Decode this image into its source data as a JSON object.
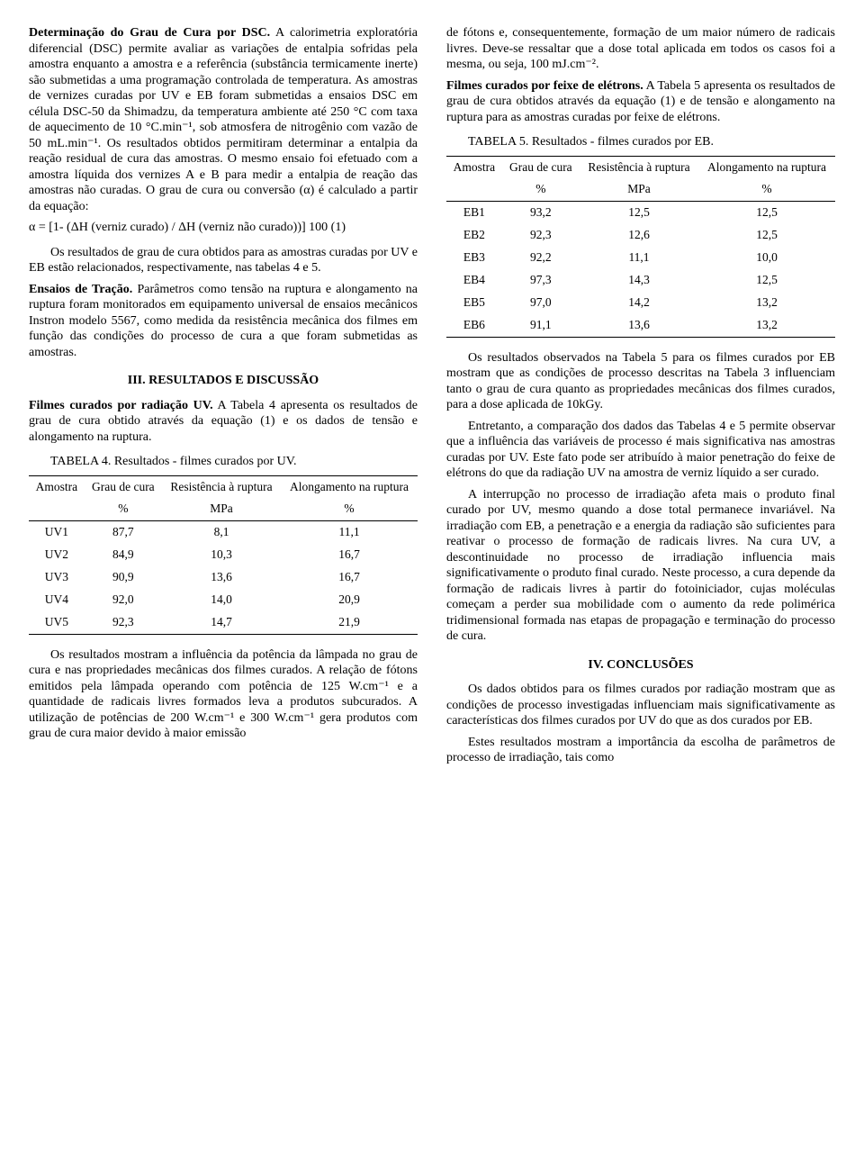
{
  "col1": {
    "p1_bold": "Determinação do Grau de Cura por DSC.",
    "p1_rest": " A calorimetria exploratória diferencial (DSC) permite avaliar as variações de entalpia sofridas pela amostra enquanto a amostra e a referência (substância termicamente inerte) são submetidas a uma programação controlada de temperatura. As amostras de vernizes curadas por UV e EB foram submetidas a ensaios DSC em célula DSC-50 da Shimadzu, da temperatura ambiente até 250 °C com taxa de aquecimento de 10 °C.min⁻¹, sob atmosfera de nitrogênio com vazão de 50 mL.min⁻¹. Os resultados obtidos permitiram determinar a entalpia da reação residual de cura das amostras. O mesmo ensaio foi efetuado com a amostra líquida dos vernizes A e B para medir a entalpia de reação das amostras não curadas. O grau de cura ou conversão (α) é calculado a partir da equação:",
    "eq": "α = [1- (ΔH (verniz curado) / ΔH (verniz não curado))] 100      (1)",
    "p2": "Os resultados de grau de cura obtidos para as amostras curadas por UV e EB estão relacionados, respectivamente, nas tabelas 4 e 5.",
    "p3_bold": "Ensaios de Tração.",
    "p3_rest": " Parâmetros como tensão na ruptura e alongamento na ruptura foram monitorados em equipamento universal de ensaios mecânicos Instron modelo 5567, como medida da resistência mecânica dos filmes em função das condições do processo de cura a que foram submetidas as amostras.",
    "sec3": "III. RESULTADOS E DISCUSSÃO",
    "p4_bold": "Filmes curados por radiação UV.",
    "p4_rest": " A Tabela 4 apresenta os resultados de grau de cura obtido através da equação (1) e os dados de tensão e alongamento na ruptura.",
    "t4cap": "TABELA 4. Resultados - filmes curados por UV.",
    "table4": {
      "head1": [
        "Amostra",
        "Grau de cura",
        "Resistência à ruptura",
        "Alongamento na ruptura"
      ],
      "head2": [
        "",
        "%",
        "MPa",
        "%"
      ],
      "rows": [
        [
          "UV1",
          "87,7",
          "8,1",
          "11,1"
        ],
        [
          "UV2",
          "84,9",
          "10,3",
          "16,7"
        ],
        [
          "UV3",
          "90,9",
          "13,6",
          "16,7"
        ],
        [
          "UV4",
          "92,0",
          "14,0",
          "20,9"
        ],
        [
          "UV5",
          "92,3",
          "14,7",
          "21,9"
        ]
      ]
    },
    "p5": "Os resultados mostram a influência da potência da lâmpada no grau de cura e nas propriedades mecânicas dos filmes curados. A relação de fótons emitidos pela lâmpada operando com potência de 125 W.cm⁻¹ e a quantidade de radicais livres formados leva a produtos subcurados. A utilização de potências de 200 W.cm⁻¹ e 300 W.cm⁻¹ gera produtos com grau de cura maior devido à maior emissão"
  },
  "col2": {
    "p1": "de fótons e, consequentemente, formação de um maior número de radicais livres. Deve-se ressaltar que a dose total aplicada em todos os casos foi a mesma, ou seja, 100 mJ.cm⁻².",
    "p2_bold": "Filmes curados por feixe de elétrons.",
    "p2_rest": " A Tabela 5 apresenta os resultados de grau de cura obtidos através da equação (1) e de tensão e alongamento na ruptura para as amostras curadas por feixe de elétrons.",
    "t5cap": "TABELA 5. Resultados - filmes curados por EB.",
    "table5": {
      "head1": [
        "Amostra",
        "Grau de cura",
        "Resistência à ruptura",
        "Alongamento na ruptura"
      ],
      "head2": [
        "",
        "%",
        "MPa",
        "%"
      ],
      "rows": [
        [
          "EB1",
          "93,2",
          "12,5",
          "12,5"
        ],
        [
          "EB2",
          "92,3",
          "12,6",
          "12,5"
        ],
        [
          "EB3",
          "92,2",
          "11,1",
          "10,0"
        ],
        [
          "EB4",
          "97,3",
          "14,3",
          "12,5"
        ],
        [
          "EB5",
          "97,0",
          "14,2",
          "13,2"
        ],
        [
          "EB6",
          "91,1",
          "13,6",
          "13,2"
        ]
      ]
    },
    "p3": "Os resultados observados na Tabela 5 para os filmes curados por EB mostram que as condições de processo descritas na Tabela 3 influenciam tanto o grau de cura quanto as propriedades mecânicas dos filmes curados, para a dose aplicada de 10kGy.",
    "p4": "Entretanto, a comparação dos dados das Tabelas 4 e 5 permite observar que a influência das variáveis de processo é mais significativa nas amostras curadas por UV. Este fato pode ser atribuído à maior penetração do feixe de elétrons do que da radiação UV na amostra de verniz líquido a ser curado.",
    "p5": "A interrupção no processo de irradiação afeta mais o produto final curado por UV, mesmo quando a dose total permanece invariável. Na irradiação com EB, a penetração e a energia da radiação são suficientes para reativar o processo de formação de radicais livres. Na cura UV, a descontinuidade no processo de irradiação influencia mais significativamente o produto final curado. Neste processo, a cura depende da formação de radicais livres à partir do fotoiniciador, cujas moléculas começam a perder sua mobilidade com o aumento da rede polimérica tridimensional formada nas etapas de propagação e terminação do processo de cura.",
    "sec4": "IV. CONCLUSÕES",
    "p6": "Os dados obtidos para os filmes curados por radiação mostram que as condições de processo investigadas influenciam mais significativamente as características dos filmes curados por UV do que as dos curados por EB.",
    "p7": "Estes resultados mostram a importância da escolha de parâmetros de processo de irradiação, tais como"
  }
}
